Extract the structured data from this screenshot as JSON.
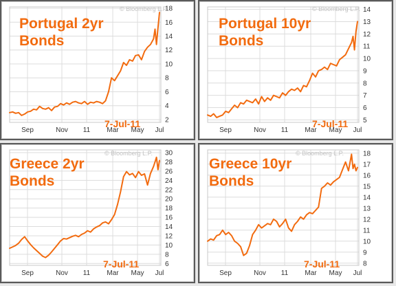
{
  "watermark": "© Bloomberg L.P.",
  "line_color": "#f26b0f",
  "title_color": "#f26b0f",
  "grid_color": "#dcdcdc",
  "axis_text_color": "#333333",
  "chart_data": [
    {
      "type": "line",
      "title": "Portugal 2yr\nBonds",
      "date_label": "7-Jul-11",
      "x_tick_labels": [
        "Sep",
        "Nov",
        "11",
        "Mar",
        "May",
        "Jul"
      ],
      "y_ticks": [
        2,
        4,
        6,
        8,
        10,
        12,
        14,
        16,
        18
      ],
      "ylim": [
        1.6,
        18.2
      ],
      "grid": true,
      "series": [
        {
          "x": [
            0,
            0.02,
            0.04,
            0.06,
            0.08,
            0.1,
            0.12,
            0.14,
            0.16,
            0.18,
            0.2,
            0.22,
            0.24,
            0.26,
            0.28,
            0.3,
            0.32,
            0.34,
            0.36,
            0.38,
            0.4,
            0.42,
            0.44,
            0.46,
            0.48,
            0.5,
            0.52,
            0.54,
            0.56,
            0.58,
            0.6,
            0.62,
            0.64,
            0.66,
            0.68,
            0.7,
            0.72,
            0.74,
            0.76,
            0.78,
            0.8,
            0.82,
            0.84,
            0.86,
            0.88,
            0.9,
            0.92,
            0.94,
            0.96,
            0.97,
            0.98,
            0.99,
            1.0
          ],
          "values": [
            3.0,
            3.1,
            2.9,
            3.0,
            2.6,
            2.8,
            3.1,
            3.2,
            3.5,
            3.4,
            3.9,
            3.6,
            3.5,
            3.7,
            3.3,
            3.8,
            3.9,
            4.3,
            4.1,
            4.4,
            4.2,
            4.5,
            4.6,
            4.4,
            4.3,
            4.6,
            4.2,
            4.5,
            4.4,
            4.6,
            4.5,
            4.3,
            4.7,
            6.0,
            8.0,
            7.6,
            8.3,
            9.0,
            10.2,
            9.8,
            10.6,
            10.4,
            11.2,
            11.3,
            10.6,
            11.8,
            12.4,
            12.8,
            13.6,
            15.0,
            12.8,
            15.2,
            17.4
          ]
        }
      ]
    },
    {
      "type": "line",
      "title": "Portugal 10yr\nBonds",
      "date_label": "7-Jul-11",
      "x_tick_labels": [
        "Sep",
        "Nov",
        "11",
        "Mar",
        "May",
        "Jul"
      ],
      "y_ticks": [
        5,
        6,
        7,
        8,
        9,
        10,
        11,
        12,
        13,
        14
      ],
      "ylim": [
        4.8,
        14.2
      ],
      "grid": true,
      "series": [
        {
          "x": [
            0,
            0.02,
            0.04,
            0.06,
            0.08,
            0.1,
            0.12,
            0.14,
            0.16,
            0.18,
            0.2,
            0.22,
            0.24,
            0.26,
            0.28,
            0.3,
            0.32,
            0.34,
            0.36,
            0.38,
            0.4,
            0.42,
            0.44,
            0.46,
            0.48,
            0.5,
            0.52,
            0.54,
            0.56,
            0.58,
            0.6,
            0.62,
            0.64,
            0.66,
            0.68,
            0.7,
            0.72,
            0.74,
            0.76,
            0.78,
            0.8,
            0.82,
            0.84,
            0.86,
            0.88,
            0.9,
            0.92,
            0.94,
            0.96,
            0.97,
            0.98,
            0.99,
            1.0
          ],
          "values": [
            5.4,
            5.3,
            5.5,
            5.2,
            5.3,
            5.4,
            5.7,
            5.6,
            5.9,
            6.2,
            6.0,
            6.4,
            6.3,
            6.6,
            6.5,
            6.4,
            6.7,
            6.3,
            6.9,
            6.5,
            6.8,
            6.6,
            7.0,
            6.9,
            6.8,
            7.2,
            7.0,
            7.3,
            7.5,
            7.4,
            7.6,
            7.3,
            7.8,
            7.7,
            8.2,
            8.8,
            8.5,
            9.0,
            9.1,
            9.3,
            9.1,
            9.6,
            9.5,
            9.4,
            9.9,
            10.1,
            10.3,
            10.8,
            11.3,
            11.8,
            10.7,
            12.2,
            13.0
          ]
        }
      ]
    },
    {
      "type": "line",
      "title": "Greece 2yr\nBonds",
      "date_label": "7-Jul-11",
      "x_tick_labels": [
        "Sep",
        "Nov",
        "11",
        "Mar",
        "May",
        "Jul"
      ],
      "y_ticks": [
        6,
        8,
        10,
        12,
        14,
        16,
        18,
        20,
        22,
        24,
        26,
        28,
        30
      ],
      "ylim": [
        5.6,
        30.6
      ],
      "grid": true,
      "series": [
        {
          "x": [
            0,
            0.02,
            0.04,
            0.06,
            0.08,
            0.1,
            0.12,
            0.14,
            0.16,
            0.18,
            0.2,
            0.22,
            0.24,
            0.26,
            0.28,
            0.3,
            0.32,
            0.34,
            0.36,
            0.38,
            0.4,
            0.42,
            0.44,
            0.46,
            0.48,
            0.5,
            0.52,
            0.54,
            0.56,
            0.58,
            0.6,
            0.62,
            0.64,
            0.66,
            0.68,
            0.7,
            0.72,
            0.74,
            0.76,
            0.78,
            0.8,
            0.82,
            0.84,
            0.86,
            0.88,
            0.9,
            0.92,
            0.94,
            0.96,
            0.97,
            0.98,
            0.99,
            1.0
          ],
          "values": [
            9.3,
            9.6,
            9.9,
            10.4,
            11.2,
            11.8,
            10.9,
            10.1,
            9.4,
            8.8,
            8.2,
            7.6,
            7.3,
            7.8,
            8.5,
            9.3,
            10.1,
            10.9,
            11.4,
            11.3,
            11.6,
            11.9,
            12.1,
            11.8,
            12.3,
            12.6,
            13.1,
            12.8,
            13.5,
            13.9,
            14.2,
            14.8,
            15.0,
            14.6,
            15.5,
            16.6,
            18.8,
            21.5,
            24.8,
            25.9,
            25.2,
            25.5,
            24.6,
            25.9,
            25.1,
            25.4,
            23.0,
            25.5,
            27.0,
            28.0,
            29.0,
            26.3,
            28.3
          ]
        }
      ]
    },
    {
      "type": "line",
      "title": "Greece 10yr\nBonds",
      "date_label": "7-Jul-11",
      "x_tick_labels": [
        "Sep",
        "Nov",
        "11",
        "Mar",
        "May",
        "Jul"
      ],
      "y_ticks": [
        8,
        9,
        10,
        11,
        12,
        13,
        14,
        15,
        16,
        17,
        18
      ],
      "ylim": [
        7.8,
        18.3
      ],
      "grid": true,
      "series": [
        {
          "x": [
            0,
            0.02,
            0.04,
            0.06,
            0.08,
            0.1,
            0.12,
            0.14,
            0.16,
            0.18,
            0.2,
            0.22,
            0.24,
            0.26,
            0.28,
            0.3,
            0.32,
            0.34,
            0.36,
            0.38,
            0.4,
            0.42,
            0.44,
            0.46,
            0.48,
            0.5,
            0.52,
            0.54,
            0.56,
            0.58,
            0.6,
            0.62,
            0.64,
            0.66,
            0.68,
            0.7,
            0.72,
            0.74,
            0.76,
            0.78,
            0.8,
            0.82,
            0.84,
            0.86,
            0.88,
            0.9,
            0.92,
            0.94,
            0.96,
            0.97,
            0.98,
            0.99,
            1.0
          ],
          "values": [
            10.0,
            10.2,
            10.1,
            10.5,
            10.6,
            11.0,
            10.6,
            10.8,
            10.5,
            10.0,
            9.8,
            9.5,
            8.7,
            8.9,
            9.6,
            10.6,
            11.0,
            11.5,
            11.2,
            11.4,
            11.6,
            11.5,
            12.0,
            11.8,
            11.3,
            11.6,
            12.0,
            11.2,
            10.9,
            11.5,
            11.8,
            12.2,
            12.0,
            12.4,
            12.6,
            12.5,
            12.8,
            13.1,
            14.8,
            15.0,
            15.3,
            15.1,
            15.4,
            15.6,
            15.8,
            16.5,
            17.2,
            16.4,
            17.9,
            16.6,
            17.0,
            16.4,
            16.7
          ]
        }
      ]
    }
  ]
}
